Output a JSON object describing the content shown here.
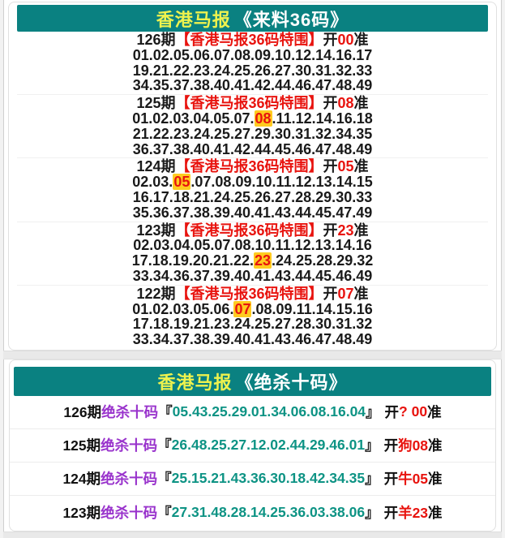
{
  "colors": {
    "header_bg": "#0a8181",
    "brand_yellow": "#eef24e",
    "alert_red": "#e8130e",
    "kill_purple": "#9933cc",
    "number_teal": "#0d9384",
    "highlight_bg": "#ffcb1f"
  },
  "card36": {
    "header": {
      "brand": "香港马报",
      "title": "《来料36码》"
    },
    "blocks": [
      {
        "period": "126期",
        "tag": "【香港马报36码特围】",
        "kai": "开",
        "result": "00",
        "zhun": "准",
        "highlight": null,
        "lines": [
          "01.02.05.06.07.08.09.10.12.14.16.17",
          "19.21.22.23.24.25.26.27.30.31.32.33",
          "34.35.37.38.40.41.42.44.46.47.48.49"
        ]
      },
      {
        "period": "125期",
        "tag": "【香港马报36码特围】",
        "kai": "开",
        "result": "08",
        "zhun": "准",
        "highlight": "08",
        "lines": [
          "01.02.03.04.05.07.08.11.12.14.16.18",
          "21.22.23.24.25.27.29.30.31.32.34.35",
          "36.37.38.40.41.42.44.45.46.47.48.49"
        ]
      },
      {
        "period": "124期",
        "tag": "【香港马报36码特围】",
        "kai": "开",
        "result": "05",
        "zhun": "准",
        "highlight": "05",
        "lines": [
          "02.03.05.07.08.09.10.11.12.13.14.15",
          "16.17.18.21.24.25.26.27.28.29.30.33",
          "35.36.37.38.39.40.41.43.44.45.47.49"
        ]
      },
      {
        "period": "123期",
        "tag": "【香港马报36码特围】",
        "kai": "开",
        "result": "23",
        "zhun": "准",
        "highlight": "23",
        "lines": [
          "02.03.04.05.07.08.10.11.12.13.14.16",
          "17.18.19.20.21.22.23.24.25.28.29.32",
          "33.34.36.37.39.40.41.43.44.45.46.49"
        ]
      },
      {
        "period": "122期",
        "tag": "【香港马报36码特围】",
        "kai": "开",
        "result": "07",
        "zhun": "准",
        "highlight": "07",
        "lines": [
          "01.02.03.05.06.07.08.09.11.14.15.16",
          "17.18.19.21.23.24.25.27.28.30.31.32",
          "33.34.37.38.39.40.41.43.46.47.48.49"
        ]
      }
    ]
  },
  "card10": {
    "header": {
      "brand": "香港马报",
      "title": "《绝杀十码》"
    },
    "rows": [
      {
        "period": "126期",
        "tag": "绝杀十码",
        "lb": "『",
        "numbers": "05.43.25.29.01.34.06.08.16.04",
        "rb": "』",
        "kai": "开",
        "result": "? 00",
        "zhun": "准"
      },
      {
        "period": "125期",
        "tag": "绝杀十码",
        "lb": "『",
        "numbers": "26.48.25.27.12.02.44.29.46.01",
        "rb": "』",
        "kai": "开",
        "result": "狗08",
        "zhun": "准"
      },
      {
        "period": "124期",
        "tag": "绝杀十码",
        "lb": "『",
        "numbers": "25.15.21.43.36.30.18.42.34.35",
        "rb": "』",
        "kai": "开",
        "result": "牛05",
        "zhun": "准"
      },
      {
        "period": "123期",
        "tag": "绝杀十码",
        "lb": "『",
        "numbers": "27.31.48.28.14.25.36.03.38.06",
        "rb": "』",
        "kai": "开",
        "result": "羊23",
        "zhun": "准"
      }
    ]
  }
}
